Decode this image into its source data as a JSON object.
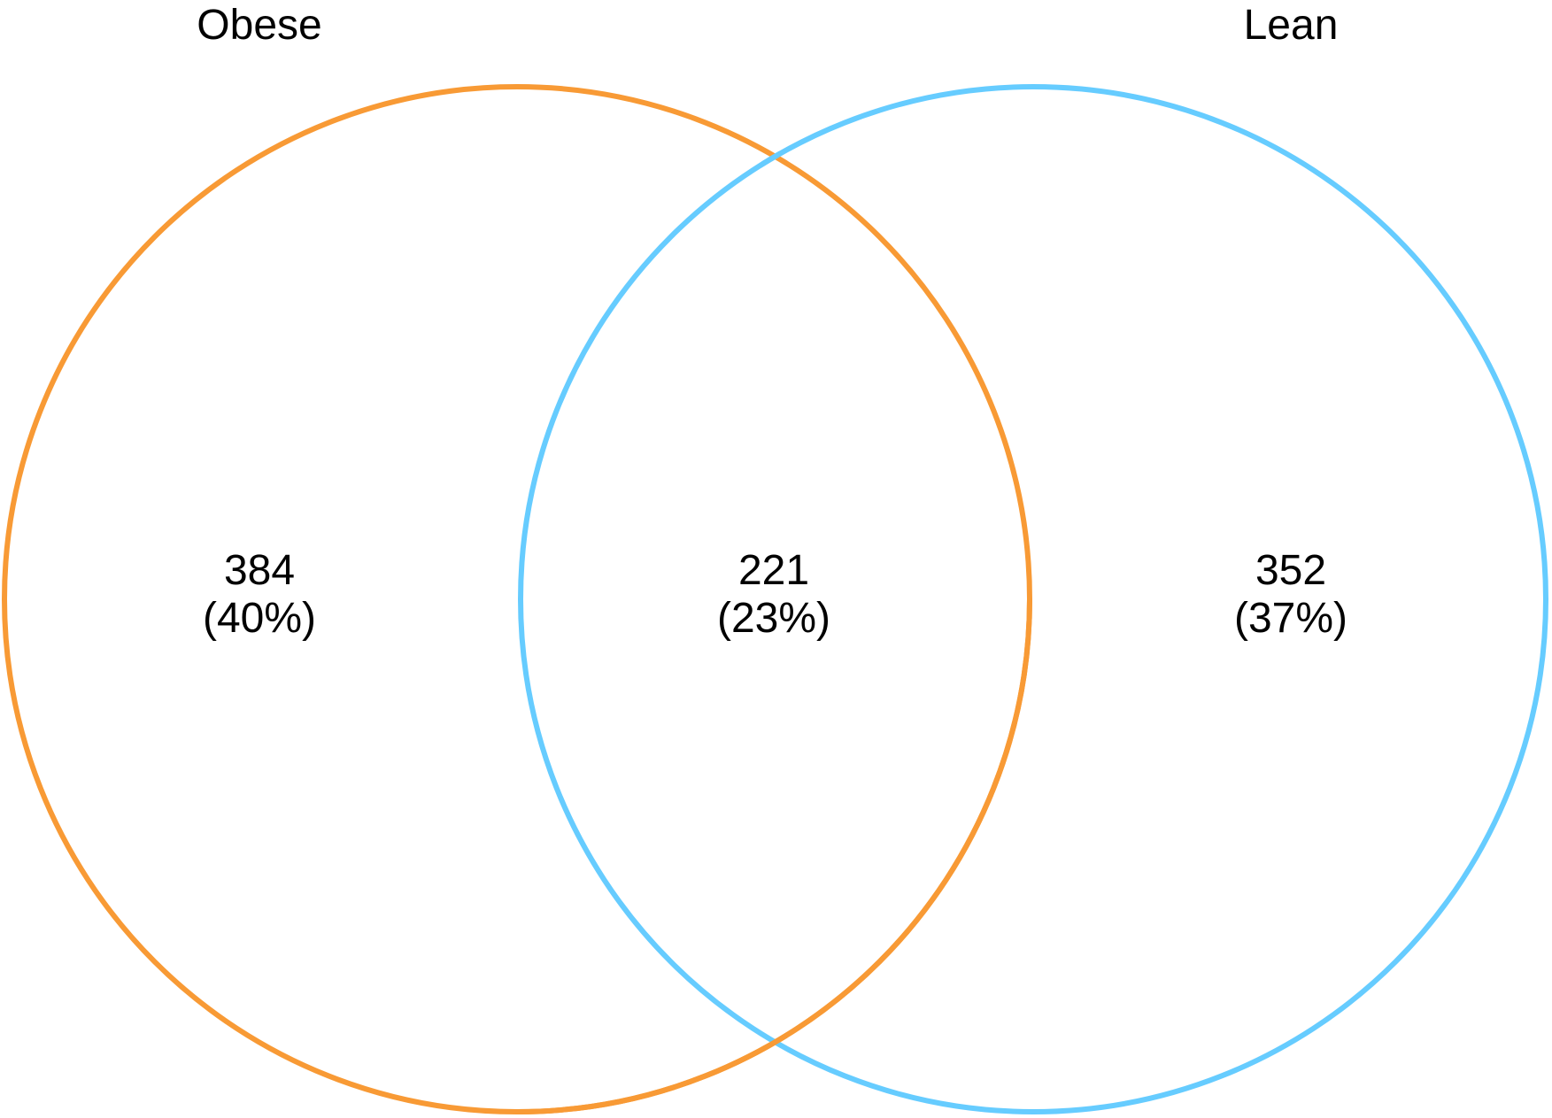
{
  "sets": [
    {
      "label": "Obese",
      "color": "#F89A35"
    },
    {
      "label": "Lean",
      "color": "#66CCFF"
    }
  ],
  "regions": {
    "obese_only": {
      "count": "384",
      "percent": "(40%)"
    },
    "overlap": {
      "count": "221",
      "percent": "(23%)"
    },
    "lean_only": {
      "count": "352",
      "percent": "(37%)"
    }
  }
}
